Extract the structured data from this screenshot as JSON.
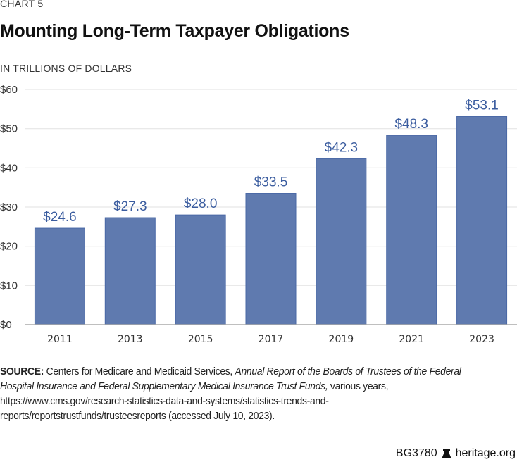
{
  "header": {
    "chart_number": "CHART 5",
    "title": "Mounting Long-Term Taxpayer Obligations",
    "units": "IN TRILLIONS OF DOLLARS"
  },
  "colors": {
    "bar": "#5f7aaf",
    "bar_edge": "#4a68a6",
    "data_label": "#3a5c9f",
    "gridline": "#e6e6e6",
    "axis": "#aaaaaa"
  },
  "chart_data": {
    "type": "bar",
    "title": "Mounting Long-Term Taxpayer Obligations",
    "subtitle": "IN TRILLIONS OF DOLLARS",
    "xlabel": "",
    "ylabel": "",
    "categories": [
      "2011",
      "2013",
      "2015",
      "2017",
      "2019",
      "2021",
      "2023"
    ],
    "values": [
      24.6,
      27.3,
      28.0,
      33.5,
      42.3,
      48.3,
      53.1
    ],
    "data_labels": [
      "$24.6",
      "$27.3",
      "$28.0",
      "$33.5",
      "$42.3",
      "$48.3",
      "$53.1"
    ],
    "ylim": [
      0,
      60
    ],
    "yticks": [
      0,
      10,
      20,
      30,
      40,
      50,
      60
    ],
    "ytick_labels": [
      "$0",
      "$10",
      "$20",
      "$30",
      "$40",
      "$50",
      "$60"
    ],
    "grid": true,
    "legend": "none"
  },
  "source": {
    "label": "SOURCE:",
    "text_1": " Centers for Medicare and Medicaid Services, ",
    "italic": "Annual Report of the Boards of Trustees of the Federal Hospital Insurance and Federal Supplementary Medical Insurance Trust Funds,",
    "text_2": " various years, https://www.cms.gov/research-statistics-data-and-systems/statistics-trends-and-reports/reportstrustfunds/trusteesreports (accessed July 10, 2023)."
  },
  "footer": {
    "report_id": "BG3780",
    "icon": "liberty-bell-icon",
    "site": "heritage.org"
  }
}
